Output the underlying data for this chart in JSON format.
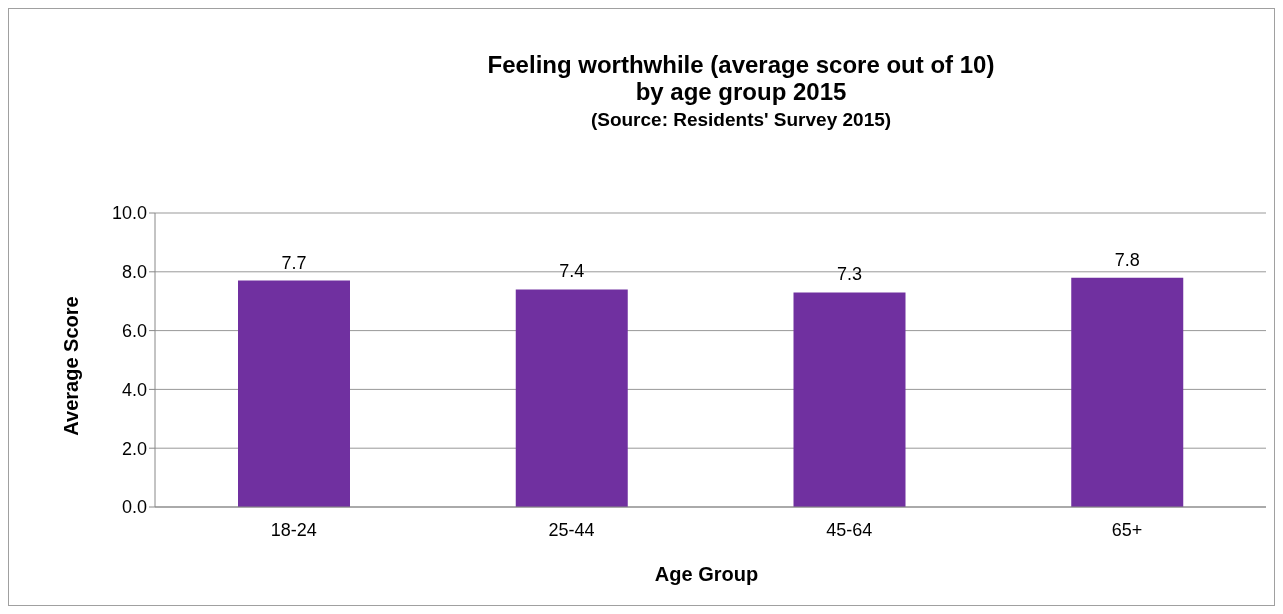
{
  "chart_data": {
    "type": "bar",
    "title": "Feeling worthwhile (average score out of 10)\nby age group 2015",
    "subtitle": "(Source: Residents' Survey 2015)",
    "xlabel": "Age Group",
    "ylabel": "Average Score",
    "categories": [
      "18-24",
      "25-44",
      "45-64",
      "65+"
    ],
    "values": [
      7.7,
      7.4,
      7.3,
      7.8
    ],
    "color": "#7030a0",
    "ylim": [
      0,
      10
    ],
    "yticks": [
      {
        "value": 0,
        "label": "0.0"
      },
      {
        "value": 2,
        "label": "2.0"
      },
      {
        "value": 4,
        "label": "4.0"
      },
      {
        "value": 6,
        "label": "6.0"
      },
      {
        "value": 8,
        "label": "8.0"
      },
      {
        "value": 10,
        "label": "10.0"
      }
    ],
    "grid": "y",
    "data_labels": true
  }
}
